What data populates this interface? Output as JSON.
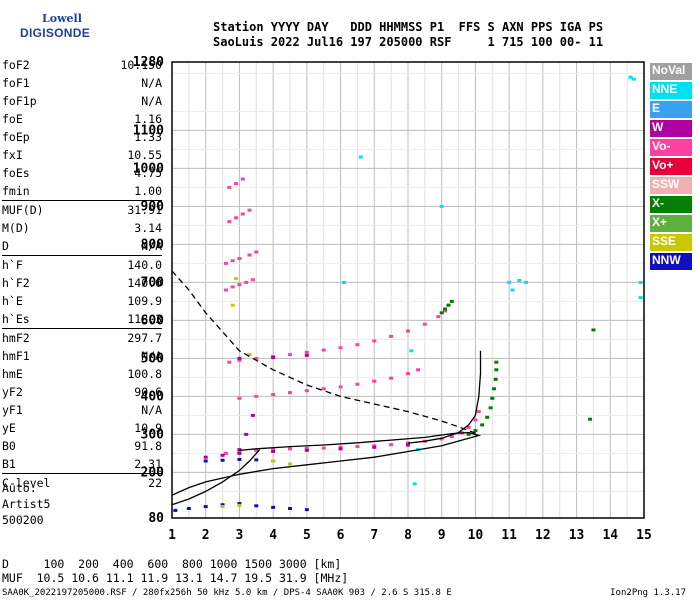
{
  "logo": {
    "line1": "Lowell",
    "line2": "DIGISONDE"
  },
  "header": {
    "line1": "Station YYYY DAY   DDD HHMMSS P1  FFS S AXN PPS IGA PS",
    "line2": "SaoLuis 2022 Jul16 197 205000 RSF     1 715 100 00- 11"
  },
  "params": [
    {
      "group": [
        {
          "k": "foF2",
          "v": "10.150"
        },
        {
          "k": "foF1",
          "v": "N/A"
        },
        {
          "k": "foF1p",
          "v": "N/A"
        },
        {
          "k": "foE",
          "v": "1.16"
        },
        {
          "k": "foEp",
          "v": "1.33"
        },
        {
          "k": "fxI",
          "v": "10.55"
        },
        {
          "k": "foEs",
          "v": "4.75"
        },
        {
          "k": "fmin",
          "v": "1.00"
        }
      ]
    },
    {
      "group": [
        {
          "k": "MUF(D)",
          "v": "31.91"
        },
        {
          "k": "M(D)",
          "v": "3.14"
        },
        {
          "k": "D",
          "v": "N/A"
        }
      ]
    },
    {
      "group": [
        {
          "k": "h`F",
          "v": "140.0"
        },
        {
          "k": "h`F2",
          "v": "140.0"
        },
        {
          "k": "h`E",
          "v": "109.9"
        },
        {
          "k": "h`Es",
          "v": "118.3"
        }
      ]
    },
    {
      "group": [
        {
          "k": "hmF2",
          "v": "297.7"
        },
        {
          "k": "hmF1",
          "v": "N/A"
        },
        {
          "k": "hmE",
          "v": "100.8"
        },
        {
          "k": "yF2",
          "v": "90.6"
        },
        {
          "k": "yF1",
          "v": "N/A"
        },
        {
          "k": "yE",
          "v": "10.9"
        },
        {
          "k": "B0",
          "v": "91.8"
        },
        {
          "k": "B1",
          "v": "2.31"
        }
      ]
    },
    {
      "group": [
        {
          "k": "C-level",
          "v": "22"
        }
      ]
    }
  ],
  "auto": {
    "line1": "Auto:",
    "line2": "Artist5",
    "line3": "500200"
  },
  "muf_table": {
    "line1": "D     100  200  400  600  800 1000 1500 3000 [km]",
    "line2": "MUF  10.5 10.6 11.1 11.9 13.1 14.7 19.5 31.9 [MHz]"
  },
  "footer": {
    "left": "SAA0K_2022197205000.RSF / 280fx256h 50 kHz 5.0 km / DPS-4 SAA0K 903 / 2.6 S 315.8 E",
    "right": "Ion2Png 1.3.17"
  },
  "legend": [
    {
      "label": "NoVal",
      "color": "#a0a0a0"
    },
    {
      "label": "NNE",
      "color": "#00e0f0"
    },
    {
      "label": "E",
      "color": "#3aa0f0"
    },
    {
      "label": "W",
      "color": "#b000a0"
    },
    {
      "label": "Vo-",
      "color": "#ff40a0"
    },
    {
      "label": "Vo+",
      "color": "#e8003a"
    },
    {
      "label": "SSW",
      "color": "#f0b0b0"
    },
    {
      "label": "X-",
      "color": "#008000"
    },
    {
      "label": "X+",
      "color": "#60b040"
    },
    {
      "label": "SSE",
      "color": "#c8c800"
    },
    {
      "label": "NNW",
      "color": "#1010c0"
    }
  ],
  "chart_data": {
    "type": "scatter",
    "x_ticks": [
      1,
      2,
      3,
      4,
      5,
      6,
      7,
      8,
      9,
      10,
      11,
      12,
      13,
      14,
      15
    ],
    "y_ticks": [
      80,
      200,
      300,
      400,
      500,
      600,
      700,
      800,
      900,
      1000,
      1100,
      1280
    ],
    "xlim": [
      1,
      15
    ],
    "ylim": [
      80,
      1280
    ],
    "grid": true,
    "legend_position": "right",
    "series": [
      {
        "color": "#ff40a0",
        "points": [
          [
            2.6,
            250
          ],
          [
            3.0,
            255
          ],
          [
            3.5,
            258
          ],
          [
            4.0,
            260
          ],
          [
            4.5,
            262
          ],
          [
            5.0,
            263
          ],
          [
            5.5,
            264
          ],
          [
            6.0,
            266
          ],
          [
            6.5,
            268
          ],
          [
            7.0,
            270
          ],
          [
            7.5,
            273
          ],
          [
            8.0,
            277
          ],
          [
            8.5,
            282
          ],
          [
            9.0,
            288
          ],
          [
            9.3,
            294
          ],
          [
            9.6,
            304
          ],
          [
            9.8,
            318
          ],
          [
            10.0,
            338
          ],
          [
            10.1,
            360
          ],
          [
            2.7,
            490
          ],
          [
            3.0,
            495
          ],
          [
            3.5,
            500
          ],
          [
            4.0,
            505
          ],
          [
            4.5,
            510
          ],
          [
            5.0,
            516
          ],
          [
            5.5,
            522
          ],
          [
            6.0,
            528
          ],
          [
            6.5,
            536
          ],
          [
            7.0,
            546
          ],
          [
            7.5,
            558
          ],
          [
            8.0,
            572
          ],
          [
            8.5,
            590
          ],
          [
            8.9,
            610
          ],
          [
            9.1,
            625
          ],
          [
            9.2,
            640
          ],
          [
            3.0,
            395
          ],
          [
            3.5,
            400
          ],
          [
            4.0,
            405
          ],
          [
            4.5,
            410
          ],
          [
            5.0,
            415
          ],
          [
            5.5,
            420
          ],
          [
            6.0,
            425
          ],
          [
            6.5,
            432
          ],
          [
            7.0,
            440
          ],
          [
            7.5,
            448
          ],
          [
            8.0,
            460
          ],
          [
            8.3,
            470
          ],
          [
            2.6,
            680
          ],
          [
            2.8,
            688
          ],
          [
            3.0,
            694
          ],
          [
            3.2,
            700
          ],
          [
            3.4,
            707
          ],
          [
            2.6,
            750
          ],
          [
            2.8,
            757
          ],
          [
            3.0,
            763
          ],
          [
            3.3,
            772
          ],
          [
            3.5,
            780
          ],
          [
            2.7,
            860
          ],
          [
            2.9,
            870
          ],
          [
            3.1,
            880
          ],
          [
            3.3,
            890
          ],
          [
            2.7,
            950
          ],
          [
            2.9,
            960
          ],
          [
            3.1,
            972
          ]
        ]
      },
      {
        "color": "#008000",
        "points": [
          [
            9.8,
            300
          ],
          [
            10.0,
            310
          ],
          [
            10.2,
            325
          ],
          [
            10.35,
            345
          ],
          [
            10.45,
            370
          ],
          [
            10.5,
            395
          ],
          [
            10.55,
            420
          ],
          [
            10.6,
            445
          ],
          [
            10.62,
            470
          ],
          [
            10.62,
            490
          ],
          [
            9.0,
            620
          ],
          [
            9.1,
            630
          ],
          [
            9.2,
            640
          ],
          [
            9.3,
            650
          ],
          [
            13.4,
            340
          ],
          [
            13.5,
            575
          ]
        ]
      },
      {
        "color": "#b000a0",
        "points": [
          [
            2.0,
            240
          ],
          [
            2.5,
            245
          ],
          [
            3.0,
            250
          ],
          [
            4.0,
            255
          ],
          [
            5.0,
            258
          ],
          [
            6.0,
            262
          ],
          [
            7.0,
            266
          ],
          [
            8.0,
            272
          ],
          [
            3.0,
            500
          ],
          [
            4.0,
            502
          ],
          [
            5.0,
            508
          ],
          [
            3.0,
            260
          ],
          [
            3.2,
            300
          ],
          [
            3.4,
            350
          ]
        ]
      },
      {
        "color": "#1010c0",
        "points": [
          [
            1.1,
            100
          ],
          [
            1.5,
            105
          ],
          [
            2.0,
            110
          ],
          [
            2.5,
            115
          ],
          [
            3.0,
            118
          ],
          [
            3.5,
            112
          ],
          [
            4.0,
            108
          ],
          [
            4.5,
            105
          ],
          [
            5.0,
            102
          ],
          [
            2.0,
            230
          ],
          [
            2.5,
            232
          ],
          [
            3.0,
            234
          ],
          [
            3.5,
            233
          ],
          [
            4.0,
            230
          ]
        ]
      },
      {
        "color": "#00e0f0",
        "points": [
          [
            8.2,
            170
          ],
          [
            8.3,
            260
          ],
          [
            8.1,
            520
          ],
          [
            11.1,
            680
          ],
          [
            11.0,
            700
          ],
          [
            11.3,
            705
          ],
          [
            11.5,
            700
          ],
          [
            14.6,
            1240
          ],
          [
            14.7,
            1235
          ],
          [
            14.9,
            660
          ],
          [
            14.9,
            700
          ],
          [
            6.6,
            1030
          ],
          [
            9.0,
            900
          ],
          [
            6.1,
            700
          ]
        ]
      },
      {
        "color": "#c8c800",
        "points": [
          [
            2.5,
            110
          ],
          [
            3.0,
            113
          ],
          [
            2.8,
            640
          ],
          [
            2.9,
            710
          ],
          [
            3.3,
            510
          ],
          [
            4.0,
            230
          ],
          [
            4.5,
            222
          ]
        ]
      }
    ],
    "curves": [
      {
        "name": "",
        "style": "dashed",
        "points": [
          [
            1.0,
            730
          ],
          [
            1.5,
            680
          ],
          [
            2.0,
            620
          ],
          [
            2.5,
            570
          ],
          [
            3.0,
            520
          ],
          [
            4.0,
            470
          ],
          [
            5.0,
            430
          ],
          [
            6.0,
            400
          ],
          [
            7.0,
            380
          ],
          [
            8.0,
            360
          ],
          [
            9.0,
            335
          ],
          [
            9.5,
            320
          ],
          [
            9.8,
            310
          ],
          [
            10.1,
            300
          ]
        ]
      },
      {
        "name": "",
        "style": "solid",
        "points": [
          [
            1.0,
            140
          ],
          [
            1.5,
            160
          ],
          [
            2.0,
            175
          ],
          [
            3.0,
            195
          ],
          [
            4.0,
            210
          ],
          [
            5.0,
            220
          ],
          [
            6.0,
            230
          ],
          [
            7.0,
            240
          ],
          [
            8.0,
            255
          ],
          [
            9.0,
            270
          ],
          [
            9.6,
            285
          ],
          [
            10.1,
            297
          ],
          [
            9.8,
            305
          ],
          [
            9.3,
            302
          ],
          [
            8.5,
            292
          ],
          [
            7.5,
            285
          ],
          [
            6.5,
            278
          ],
          [
            5.5,
            272
          ],
          [
            4.5,
            268
          ],
          [
            3.5,
            262
          ],
          [
            3.0,
            258
          ]
        ]
      },
      {
        "name": "",
        "style": "solid",
        "points": [
          [
            8.0,
            277
          ],
          [
            8.5,
            282
          ],
          [
            9.0,
            290
          ],
          [
            9.5,
            305
          ],
          [
            9.8,
            325
          ],
          [
            10.0,
            350
          ],
          [
            10.1,
            400
          ],
          [
            10.15,
            460
          ],
          [
            10.15,
            520
          ]
        ]
      },
      {
        "name": "",
        "style": "solid",
        "points": [
          [
            1.0,
            115
          ],
          [
            1.5,
            130
          ],
          [
            2.0,
            150
          ],
          [
            2.5,
            175
          ],
          [
            3.0,
            205
          ],
          [
            3.3,
            230
          ],
          [
            3.6,
            260
          ]
        ]
      }
    ]
  }
}
